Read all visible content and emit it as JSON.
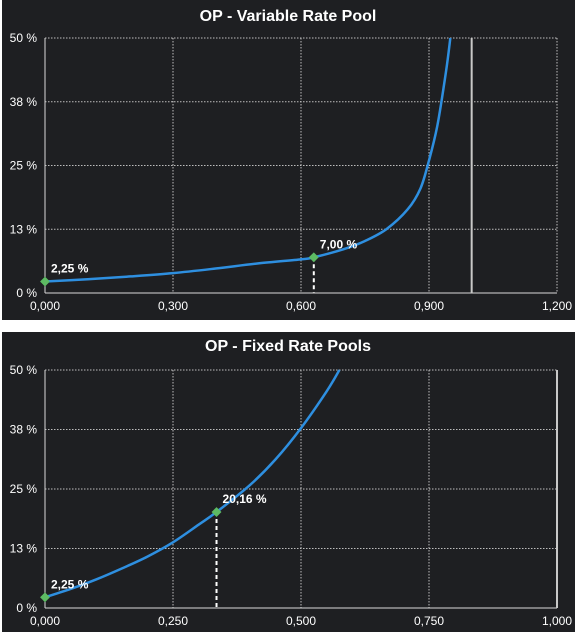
{
  "chart_data": [
    {
      "type": "line",
      "title": "OP - Variable Rate Pool",
      "xlabel": "",
      "ylabel": "",
      "xlim": [
        0,
        1.2
      ],
      "ylim": [
        0,
        50
      ],
      "x_ticks": [
        0,
        0.3,
        0.6,
        0.9,
        1.2
      ],
      "x_tick_labels": [
        "0,000",
        "0,300",
        "0,600",
        "0,900",
        "1,200"
      ],
      "y_ticks": [
        0,
        12.5,
        25,
        37.5,
        50
      ],
      "y_tick_labels": [
        "0 %",
        "13 %",
        "25 %",
        "38 %",
        "50 %"
      ],
      "grid": true,
      "legend": "none",
      "series": [
        {
          "color": "#2e8fe0",
          "x": [
            0,
            0.1,
            0.2,
            0.3,
            0.4,
            0.5,
            0.6,
            0.63,
            0.7,
            0.75,
            0.8,
            0.85,
            0.88,
            0.9,
            0.92,
            0.94,
            0.95
          ],
          "y": [
            2.25,
            2.7,
            3.25,
            3.9,
            4.8,
            5.8,
            6.6,
            7.0,
            8.6,
            10.2,
            12.5,
            16.4,
            20.5,
            26.0,
            33.0,
            43.5,
            50.0
          ]
        }
      ],
      "vertical_line": {
        "x": 1.0,
        "color": "#c8c8c8"
      },
      "markers": [
        {
          "x": 0.0,
          "y": 2.25,
          "label": "2,25 %",
          "dropline": false
        },
        {
          "x": 0.63,
          "y": 7.0,
          "label": "7,00 %",
          "dropline": true
        }
      ],
      "colors": {
        "background": "#1e1f22",
        "grid": "#d9d9d9",
        "marker": "#5dbb63"
      }
    },
    {
      "type": "line",
      "title": "OP - Fixed Rate Pools",
      "xlabel": "",
      "ylabel": "",
      "xlim": [
        0,
        1.0
      ],
      "ylim": [
        0,
        50
      ],
      "x_ticks": [
        0,
        0.25,
        0.5,
        0.75,
        1.0
      ],
      "x_tick_labels": [
        "0,000",
        "0,250",
        "0,500",
        "0,750",
        "1,000"
      ],
      "y_ticks": [
        0,
        12.5,
        25,
        37.5,
        50
      ],
      "y_tick_labels": [
        "0 %",
        "13 %",
        "25 %",
        "38 %",
        "50 %"
      ],
      "grid": true,
      "legend": "none",
      "series": [
        {
          "color": "#2e8fe0",
          "x": [
            0,
            0.05,
            0.1,
            0.15,
            0.2,
            0.25,
            0.3,
            0.335,
            0.4,
            0.45,
            0.5,
            0.55,
            0.575
          ],
          "y": [
            2.25,
            4.0,
            6.0,
            8.3,
            10.8,
            13.8,
            17.5,
            20.16,
            25.8,
            31.2,
            37.8,
            45.5,
            50.0
          ]
        }
      ],
      "vertical_line": {
        "x": 1.0,
        "color": "#c8c8c8"
      },
      "markers": [
        {
          "x": 0.0,
          "y": 2.25,
          "label": "2,25 %",
          "dropline": false
        },
        {
          "x": 0.335,
          "y": 20.16,
          "label": "20,16 %",
          "dropline": true
        }
      ],
      "colors": {
        "background": "#1e1f22",
        "grid": "#d9d9d9",
        "marker": "#5dbb63"
      }
    }
  ]
}
